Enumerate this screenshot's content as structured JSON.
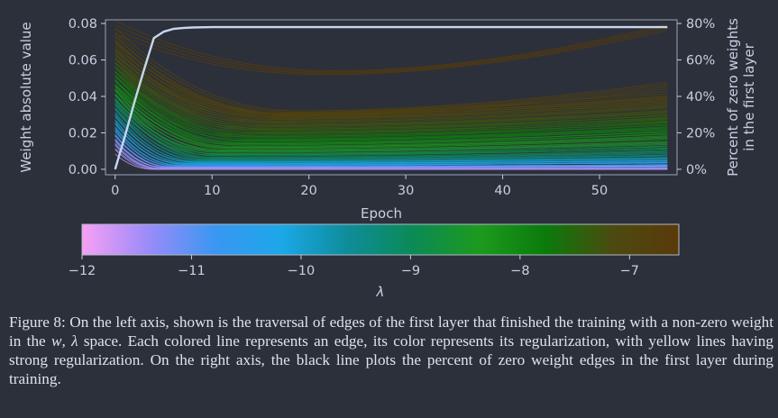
{
  "chart_data": [
    {
      "type": "line",
      "title": "",
      "xlabel": "Epoch",
      "ylabel": "Weight absolute value",
      "y2label_line1": "Percent of zero weights",
      "y2label_line2": "in the first layer",
      "xlim": [
        -1,
        58
      ],
      "ylim": [
        -0.003,
        0.082
      ],
      "y2lim": [
        -3.0,
        82.0
      ],
      "xticks": [
        0,
        10,
        20,
        30,
        40,
        50
      ],
      "yticks": [
        0.0,
        0.02,
        0.04,
        0.06,
        0.08
      ],
      "ytick_labels": [
        "0.00",
        "0.02",
        "0.04",
        "0.06",
        "0.08"
      ],
      "y2ticks": [
        0,
        20,
        40,
        60,
        80
      ],
      "y2tick_labels": [
        "0%",
        "20%",
        "40%",
        "60%",
        "80%"
      ],
      "grid": false,
      "zero_weight_percent_series": {
        "x": [
          0,
          1,
          2,
          3,
          4,
          5,
          6,
          7,
          8,
          10,
          15,
          20,
          30,
          40,
          50,
          57
        ],
        "values": [
          0,
          18,
          37,
          55,
          72,
          75.5,
          77,
          77.5,
          77.8,
          78,
          78,
          78,
          78,
          78,
          78,
          78
        ]
      },
      "edge_series": [
        {
          "lambda": -6.6,
          "start": 0.078,
          "min": 0.053,
          "min_epoch": 22,
          "end": 0.078
        },
        {
          "lambda": -6.8,
          "start": 0.074,
          "min": 0.031,
          "min_epoch": 18,
          "end": 0.046
        },
        {
          "lambda": -6.9,
          "start": 0.07,
          "min": 0.03,
          "min_epoch": 16,
          "end": 0.041
        },
        {
          "lambda": -7.0,
          "start": 0.066,
          "min": 0.029,
          "min_epoch": 17,
          "end": 0.038
        },
        {
          "lambda": -7.1,
          "start": 0.062,
          "min": 0.027,
          "min_epoch": 15,
          "end": 0.036
        },
        {
          "lambda": -7.2,
          "start": 0.06,
          "min": 0.025,
          "min_epoch": 16,
          "end": 0.033
        },
        {
          "lambda": -7.3,
          "start": 0.057,
          "min": 0.023,
          "min_epoch": 14,
          "end": 0.03
        },
        {
          "lambda": -7.4,
          "start": 0.055,
          "min": 0.021,
          "min_epoch": 15,
          "end": 0.028
        },
        {
          "lambda": -7.5,
          "start": 0.052,
          "min": 0.019,
          "min_epoch": 13,
          "end": 0.026
        },
        {
          "lambda": -7.7,
          "start": 0.05,
          "min": 0.017,
          "min_epoch": 14,
          "end": 0.024
        },
        {
          "lambda": -7.9,
          "start": 0.048,
          "min": 0.015,
          "min_epoch": 12,
          "end": 0.021
        },
        {
          "lambda": -8.1,
          "start": 0.045,
          "min": 0.013,
          "min_epoch": 12,
          "end": 0.019
        },
        {
          "lambda": -8.3,
          "start": 0.042,
          "min": 0.011,
          "min_epoch": 11,
          "end": 0.016
        },
        {
          "lambda": -8.6,
          "start": 0.04,
          "min": 0.009,
          "min_epoch": 10,
          "end": 0.013
        },
        {
          "lambda": -8.9,
          "start": 0.037,
          "min": 0.007,
          "min_epoch": 10,
          "end": 0.011
        },
        {
          "lambda": -9.2,
          "start": 0.034,
          "min": 0.005,
          "min_epoch": 9,
          "end": 0.008
        },
        {
          "lambda": -9.6,
          "start": 0.03,
          "min": 0.004,
          "min_epoch": 8,
          "end": 0.006
        },
        {
          "lambda": -10.0,
          "start": 0.026,
          "min": 0.003,
          "min_epoch": 7,
          "end": 0.004
        },
        {
          "lambda": -10.4,
          "start": 0.022,
          "min": 0.002,
          "min_epoch": 6,
          "end": 0.003
        },
        {
          "lambda": -10.8,
          "start": 0.018,
          "min": 0.001,
          "min_epoch": 5,
          "end": 0.002
        },
        {
          "lambda": -11.2,
          "start": 0.015,
          "min": 0.0,
          "min_epoch": 5,
          "end": 0.0
        },
        {
          "lambda": -11.6,
          "start": 0.012,
          "min": 0.0,
          "min_epoch": 4,
          "end": 0.0
        }
      ]
    },
    {
      "type": "heatmap",
      "xlabel": "λ",
      "xlim": [
        -12,
        -6.55
      ],
      "xticks": [
        -12,
        -11,
        -10,
        -9,
        -8,
        -7
      ],
      "xtick_labels": [
        "−12",
        "−11",
        "−10",
        "−9",
        "−8",
        "−7"
      ],
      "colors": [
        "#f7a0f5",
        "#9b8bf8",
        "#3a97f2",
        "#1ca7e8",
        "#0e8d9a",
        "#0b8a55",
        "#1d9a1d",
        "#0b7a0b",
        "#4c4a10",
        "#5a3a0a"
      ]
    }
  ],
  "caption": {
    "label": "Figure 8:",
    "part1": " On the left axis, shown is the traversal of edges of the first layer that finished the training with a non-zero weight in the ",
    "var_w": "w",
    "sep": ", ",
    "var_lambda": "λ",
    "part2": " space. Each colored line represents an edge, its color represents its regularization, with yellow lines having strong regularization. On the right axis, the black line plots the percent of zero weight edges in the first layer during training."
  }
}
